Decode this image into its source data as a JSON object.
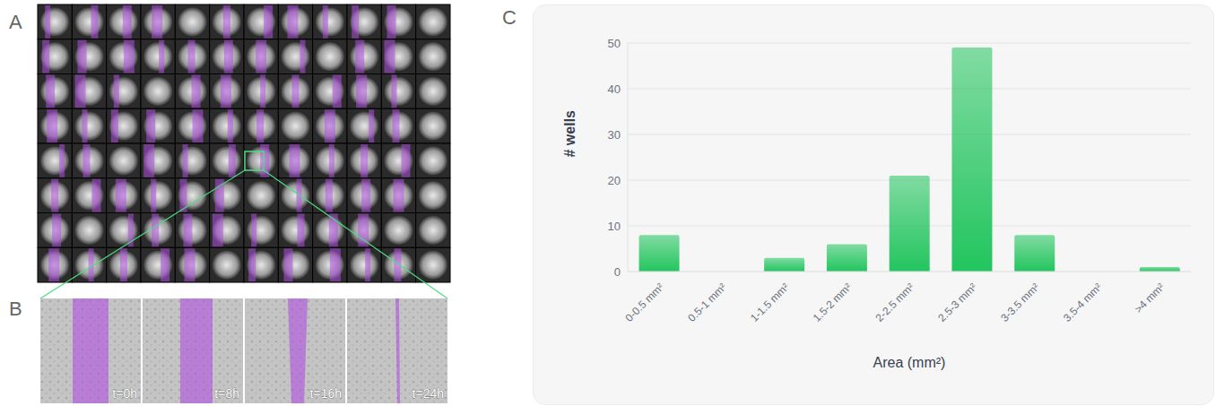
{
  "panel_labels": [
    "A",
    "B",
    "C"
  ],
  "timelapse_labels": [
    "t=0h",
    "t=8h",
    "t=16h",
    "t=24h"
  ],
  "chart_data": {
    "type": "bar",
    "categories": [
      "0-0.5 mm²",
      "0.5-1 mm²",
      "1-1.5 mm²",
      "1.5-2 mm²",
      "2-2.5 mm²",
      "2.5-3 mm²",
      "3-3.5 mm²",
      "3.5-4 mm²",
      ">4 mm²"
    ],
    "values": [
      8,
      0,
      3,
      6,
      21,
      49,
      8,
      0,
      1
    ],
    "color": "#22c55e",
    "ylim": [
      0,
      50
    ],
    "yticks": [
      0,
      10,
      20,
      30,
      40,
      50
    ],
    "grid": true,
    "x_label": "Area (mm²)",
    "y_label": "# wells"
  }
}
